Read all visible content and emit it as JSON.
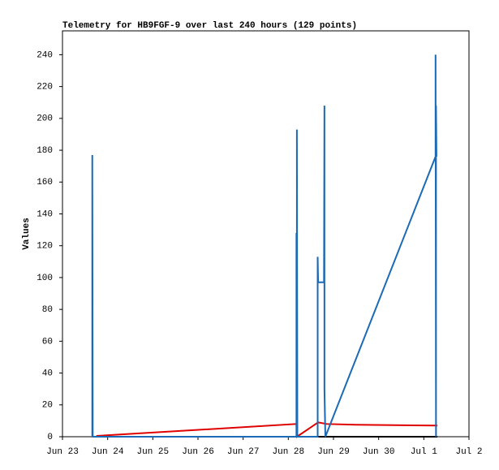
{
  "chart_data": {
    "type": "line",
    "title": "Telemetry for HB9FGF-9 over last 240 hours (129 points)",
    "y_label": "Values",
    "xlim": [
      23,
      32
    ],
    "xticks": [
      {
        "value": 23,
        "label": "Jun 23"
      },
      {
        "value": 24,
        "label": "Jun 24"
      },
      {
        "value": 25,
        "label": "Jun 25"
      },
      {
        "value": 26,
        "label": "Jun 26"
      },
      {
        "value": 27,
        "label": "Jun 27"
      },
      {
        "value": 28,
        "label": "Jun 28"
      },
      {
        "value": 29,
        "label": "Jun 29"
      },
      {
        "value": 30,
        "label": "Jun 30"
      },
      {
        "value": 31,
        "label": "Jul 1"
      },
      {
        "value": 32,
        "label": "Jul 2"
      }
    ],
    "ylim": [
      0,
      255
    ],
    "yticks": [
      0,
      20,
      40,
      60,
      80,
      100,
      120,
      140,
      160,
      180,
      200,
      220,
      240
    ],
    "series": [
      {
        "color": "#000000",
        "x": [
          23.66,
          31.3
        ],
        "values": [
          0,
          0
        ]
      },
      {
        "color": "#e00000",
        "x": [
          23.75,
          28.18,
          28.19,
          28.66,
          28.85,
          29.5,
          31.3
        ],
        "values": [
          0.5,
          8,
          0,
          9,
          8,
          7.5,
          7
        ]
      },
      {
        "color": "#1a6ab5",
        "x": [
          23.66,
          23.66,
          23.67,
          28.18,
          28.18,
          28.19,
          28.19,
          28.2,
          28.65,
          28.65,
          28.66,
          28.79,
          28.8,
          28.8,
          28.82,
          31.26,
          31.26,
          31.27,
          31.27,
          31.28
        ],
        "values": [
          0,
          177,
          0,
          0,
          128,
          0,
          193,
          0,
          0,
          113,
          97,
          97,
          208,
          30,
          0,
          176,
          240,
          0,
          208,
          176
        ]
      }
    ]
  }
}
